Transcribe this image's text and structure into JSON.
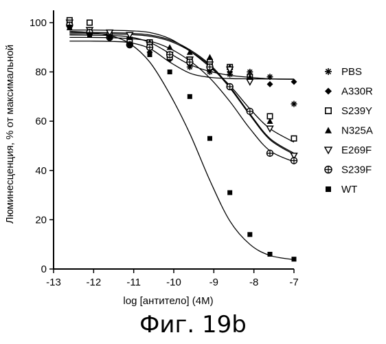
{
  "caption": "Фиг. 19b",
  "chart_data": {
    "type": "scatter",
    "title": "",
    "xlabel": "log [антитело] (4M)",
    "ylabel": "Люминесценция, % от максимальной",
    "xlim": [
      -13,
      -7
    ],
    "ylim": [
      0,
      105
    ],
    "xticks": [
      -13,
      -12,
      -11,
      -10,
      -9,
      -8,
      -7
    ],
    "yticks": [
      0,
      20,
      40,
      60,
      80,
      100
    ],
    "grid": false,
    "legend_position": "right",
    "x": [
      -12.6,
      -12.1,
      -11.6,
      -11.1,
      -10.6,
      -10.1,
      -9.6,
      -9.1,
      -8.6,
      -8.1,
      -7.6,
      -7.0
    ],
    "series": [
      {
        "name": "PBS",
        "marker": "asterisk",
        "values": [
          100,
          96,
          94,
          92,
          90,
          86,
          82,
          80,
          79,
          80,
          78,
          67
        ],
        "fit": [
          92.5,
          92.5,
          92.4,
          91.9,
          89.5,
          84.0,
          79.5,
          77.8,
          77.3,
          77.2,
          77.1,
          77.1
        ]
      },
      {
        "name": "A330R",
        "marker": "diamond",
        "values": [
          99,
          97,
          94,
          93,
          88,
          85,
          83,
          81,
          80,
          78,
          75,
          76
        ],
        "fit": [
          95.0,
          94.9,
          94.8,
          94.2,
          92.0,
          87.5,
          83.0,
          80.2,
          78.6,
          77.8,
          77.2,
          77.0
        ]
      },
      {
        "name": "S239Y",
        "marker": "square-open",
        "values": [
          101,
          100,
          95,
          93,
          92,
          86,
          85,
          84,
          82,
          78,
          62,
          53
        ],
        "fit": [
          97.0,
          97.0,
          96.9,
          96.7,
          96.0,
          93.5,
          88.5,
          82.0,
          74.5,
          65.0,
          57.0,
          51.5
        ]
      },
      {
        "name": "N325A",
        "marker": "triangle",
        "values": [
          98,
          96,
          95,
          94,
          92,
          90,
          88,
          86,
          82,
          78,
          60,
          45
        ],
        "fit": [
          96.0,
          96.0,
          95.9,
          95.7,
          95.0,
          93.0,
          89.0,
          83.0,
          74.0,
          63.0,
          53.0,
          47.0
        ]
      },
      {
        "name": "E269F",
        "marker": "triangle-down-open",
        "values": [
          100,
          97,
          96,
          95,
          91,
          87,
          85,
          83,
          81,
          76,
          57,
          46
        ],
        "fit": [
          95.5,
          95.5,
          95.4,
          95.2,
          94.5,
          92.5,
          88.5,
          82.5,
          73.5,
          62.5,
          52.5,
          46.5
        ]
      },
      {
        "name": "S239F",
        "marker": "circle-cross",
        "values": [
          99,
          96,
          94,
          91,
          90,
          87,
          84,
          82,
          74,
          64,
          47,
          44
        ],
        "fit": [
          94.0,
          94.0,
          93.9,
          93.5,
          92.5,
          89.5,
          84.5,
          77.5,
          68.0,
          57.0,
          48.0,
          43.5
        ]
      },
      {
        "name": "WT",
        "marker": "square-filled",
        "values": [
          98,
          95,
          94,
          91,
          87,
          80,
          70,
          53,
          31,
          14,
          6,
          4
        ],
        "fit": [
          96.5,
          96.0,
          94.8,
          91.5,
          84.0,
          71.0,
          55.0,
          36.0,
          19.5,
          10.0,
          5.5,
          3.8
        ]
      }
    ]
  }
}
